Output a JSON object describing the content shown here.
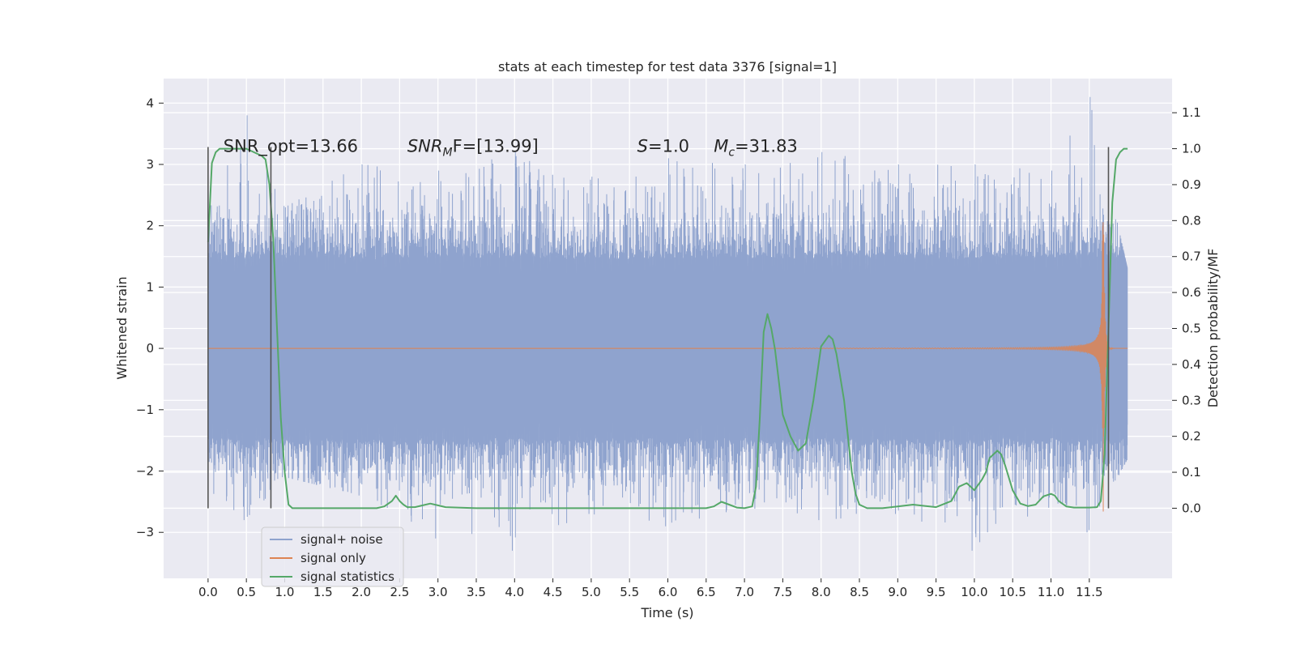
{
  "chart_data": {
    "type": "line",
    "title": "stats at each timestep for test data 3376 [signal=1]",
    "xlabel": "Time (s)",
    "ylabel_left": "Whitened strain",
    "ylabel_right": "Detection probability/MF",
    "xlim": [
      -0.58,
      12.58
    ],
    "ylim_left": [
      -3.75,
      4.4
    ],
    "ylim_right": [
      -0.195,
      1.195
    ],
    "x_ticks": [
      0.0,
      0.5,
      1.0,
      1.5,
      2.0,
      2.5,
      3.0,
      3.5,
      4.0,
      4.5,
      5.0,
      5.5,
      6.0,
      6.5,
      7.0,
      7.5,
      8.0,
      8.5,
      9.0,
      9.5,
      10.0,
      10.5,
      11.0,
      11.5
    ],
    "x_tick_labels": [
      "0.0",
      "0.5",
      "1.0",
      "1.5",
      "2.0",
      "2.5",
      "3.0",
      "3.5",
      "4.0",
      "4.5",
      "5.0",
      "5.5",
      "6.0",
      "6.5",
      "7.0",
      "7.5",
      "8.0",
      "8.5",
      "9.0",
      "9.5",
      "10.0",
      "10.5",
      "11.0",
      "11.5"
    ],
    "y_left_ticks": [
      -3,
      -2,
      -1,
      0,
      1,
      2,
      3,
      4
    ],
    "y_left_tick_labels": [
      "−3",
      "−2",
      "−1",
      "0",
      "1",
      "2",
      "3",
      "4"
    ],
    "y_right_ticks": [
      0.0,
      0.1,
      0.2,
      0.3,
      0.4,
      0.5,
      0.6,
      0.7,
      0.8,
      0.9,
      1.0,
      1.1
    ],
    "y_right_tick_labels": [
      "0.0",
      "0.1",
      "0.2",
      "0.3",
      "0.4",
      "0.5",
      "0.6",
      "0.7",
      "0.8",
      "0.9",
      "1.0",
      "1.1"
    ],
    "grid": true,
    "legend_position": "lower-left",
    "annotations": [
      {
        "text": "SNR_opt=13.66",
        "x": 0.2,
        "y": 3.3
      },
      {
        "base": "SNR",
        "sub": "M",
        "tail": "F=[13.99]",
        "x": 2.6,
        "y": 3.3
      },
      {
        "base": "S",
        "tail": "=1.0",
        "x": 5.6,
        "y": 3.3
      },
      {
        "base": "M",
        "sub": "c",
        "tail": "=31.83",
        "x": 6.6,
        "y": 3.3
      }
    ],
    "series": [
      {
        "name": "signal+ noise",
        "axis": "left",
        "color": "#8fa3ce",
        "kind": "noise_band",
        "x_range": [
          0.0,
          12.0
        ],
        "envelope": [
          {
            "x": 0.0,
            "hi": 2.2,
            "lo": -2.3
          },
          {
            "x": 0.5,
            "hi": 3.8,
            "lo": -2.8
          },
          {
            "x": 1.0,
            "hi": 2.3,
            "lo": -2.1
          },
          {
            "x": 2.0,
            "hi": 3.0,
            "lo": -2.4
          },
          {
            "x": 3.0,
            "hi": 2.9,
            "lo": -3.1
          },
          {
            "x": 4.0,
            "hi": 3.2,
            "lo": -3.3
          },
          {
            "x": 5.0,
            "hi": 2.8,
            "lo": -2.7
          },
          {
            "x": 6.0,
            "hi": 3.1,
            "lo": -2.9
          },
          {
            "x": 7.0,
            "hi": 3.0,
            "lo": -2.6
          },
          {
            "x": 8.0,
            "hi": 3.2,
            "lo": -2.8
          },
          {
            "x": 9.0,
            "hi": 3.0,
            "lo": -2.7
          },
          {
            "x": 10.0,
            "hi": 3.0,
            "lo": -3.3
          },
          {
            "x": 11.0,
            "hi": 2.9,
            "lo": -2.6
          },
          {
            "x": 11.5,
            "hi": 4.1,
            "lo": -3.0
          },
          {
            "x": 12.0,
            "hi": 1.3,
            "lo": -1.8
          }
        ]
      },
      {
        "name": "signal only",
        "axis": "left",
        "color": "#dd8452",
        "kind": "chirp",
        "x_range": [
          7.5,
          12.0
        ],
        "merger_time": 11.68,
        "peak_amplitude": 3.0
      },
      {
        "name": "signal statistics",
        "axis": "right",
        "color": "#55a868",
        "kind": "line",
        "x": [
          0.0,
          0.05,
          0.1,
          0.15,
          0.2,
          0.3,
          0.5,
          0.7,
          0.75,
          0.8,
          0.85,
          0.9,
          0.95,
          1.0,
          1.05,
          1.1,
          1.5,
          2.0,
          2.2,
          2.3,
          2.4,
          2.45,
          2.5,
          2.55,
          2.6,
          2.7,
          2.8,
          2.9,
          3.0,
          3.1,
          3.5,
          4.5,
          5.5,
          6.5,
          6.6,
          6.7,
          6.8,
          6.9,
          7.0,
          7.1,
          7.15,
          7.2,
          7.25,
          7.3,
          7.35,
          7.4,
          7.45,
          7.5,
          7.6,
          7.7,
          7.8,
          7.9,
          8.0,
          8.1,
          8.15,
          8.2,
          8.3,
          8.4,
          8.45,
          8.5,
          8.6,
          8.8,
          9.0,
          9.2,
          9.5,
          9.7,
          9.8,
          9.9,
          10.0,
          10.1,
          10.15,
          10.2,
          10.3,
          10.35,
          10.4,
          10.5,
          10.6,
          10.7,
          10.8,
          10.9,
          11.0,
          11.05,
          11.1,
          11.2,
          11.3,
          11.5,
          11.6,
          11.65,
          11.7,
          11.75,
          11.8,
          11.85,
          11.9,
          11.95,
          12.0
        ],
        "values": [
          0.74,
          0.96,
          0.99,
          1.0,
          1.0,
          1.0,
          1.0,
          0.98,
          0.97,
          0.9,
          0.75,
          0.5,
          0.25,
          0.1,
          0.01,
          0.0,
          0.0,
          0.0,
          0.0,
          0.005,
          0.02,
          0.035,
          0.02,
          0.01,
          0.003,
          0.003,
          0.008,
          0.013,
          0.008,
          0.003,
          0.0,
          0.0,
          0.0,
          0.0,
          0.005,
          0.018,
          0.01,
          0.002,
          0.0,
          0.005,
          0.06,
          0.25,
          0.49,
          0.54,
          0.5,
          0.44,
          0.35,
          0.26,
          0.2,
          0.16,
          0.18,
          0.3,
          0.45,
          0.48,
          0.47,
          0.43,
          0.3,
          0.1,
          0.04,
          0.01,
          0.0,
          0.0,
          0.005,
          0.01,
          0.003,
          0.02,
          0.06,
          0.07,
          0.05,
          0.08,
          0.1,
          0.14,
          0.16,
          0.15,
          0.12,
          0.05,
          0.013,
          0.006,
          0.01,
          0.033,
          0.04,
          0.035,
          0.02,
          0.005,
          0.002,
          0.002,
          0.003,
          0.02,
          0.15,
          0.5,
          0.85,
          0.97,
          0.99,
          1.0,
          1.0
        ]
      }
    ],
    "markers": [
      {
        "name": "vertical-marker-start",
        "x": 0.0,
        "y_top": 1.0,
        "y_bottom": 0.0,
        "axis": "right",
        "color": "#555555"
      },
      {
        "name": "vertical-marker-end-window",
        "x": 0.82,
        "y_top": 1.0,
        "y_bottom": 0.0,
        "axis": "right",
        "color": "#555555"
      },
      {
        "name": "vertical-marker-merger",
        "x": 11.75,
        "y_top": 1.0,
        "y_bottom": 0.0,
        "axis": "right",
        "color": "#555555"
      }
    ],
    "legend": [
      {
        "label": "signal+ noise",
        "color": "#8fa3ce"
      },
      {
        "label": "signal only",
        "color": "#dd8452"
      },
      {
        "label": "signal statistics",
        "color": "#55a868"
      }
    ],
    "colors": {
      "axes_background": "#eaeaf2",
      "grid": "#ffffff",
      "text": "#262626"
    }
  }
}
